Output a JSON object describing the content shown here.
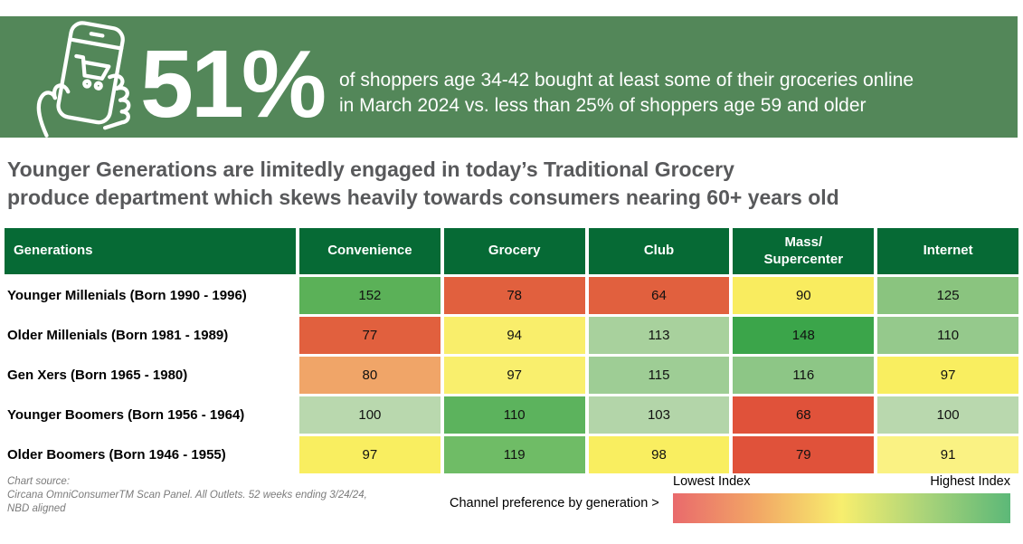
{
  "banner": {
    "bg_color": "#538759",
    "stat": "51%",
    "description_line1": "of shoppers age 34-42 bought at least some of their groceries online",
    "description_line2": "in March 2024 vs. less than 25% of shoppers age 59 and older",
    "icon": "hand-holding-phone-shopping-cart-icon"
  },
  "headline": {
    "line1": "Younger Generations are limitedly engaged in today’s Traditional Grocery",
    "line2": "produce department which skews heavily towards consumers nearing 60+ years old"
  },
  "chart_data": {
    "type": "heatmap",
    "title": "Channel preference by generation",
    "corner_header": "Generations",
    "header_bg": "#066a35",
    "columns": [
      "Convenience",
      "Grocery",
      "Club",
      "Mass/\nSupercenter",
      "Internet"
    ],
    "rows": [
      {
        "label": "Younger Millenials (Born 1990 - 1996)",
        "values": [
          152,
          78,
          64,
          90,
          125
        ],
        "colors": [
          "#5bb158",
          "#e1603e",
          "#e1603e",
          "#f9ec5f",
          "#8ac47f"
        ]
      },
      {
        "label": "Older Millenials (Born 1981 - 1989)",
        "values": [
          77,
          94,
          113,
          148,
          110
        ],
        "colors": [
          "#e1603e",
          "#f9ee6b",
          "#a8d19d",
          "#3ba54a",
          "#95c98c"
        ]
      },
      {
        "label": "Gen Xers (Born 1965 - 1980)",
        "values": [
          80,
          97,
          115,
          116,
          97
        ],
        "colors": [
          "#f0a568",
          "#f9ef6d",
          "#9ecd95",
          "#8dc686",
          "#f9ee60"
        ]
      },
      {
        "label": "Younger Boomers (Born 1956 - 1964)",
        "values": [
          100,
          110,
          103,
          68,
          100
        ],
        "colors": [
          "#b9d8ae",
          "#5cb35d",
          "#b3d5a9",
          "#e0523a",
          "#b9d8ae"
        ]
      },
      {
        "label": "Older Boomers (Born 1946 - 1955)",
        "values": [
          97,
          119,
          98,
          79,
          91
        ],
        "colors": [
          "#f9ee60",
          "#6fbc66",
          "#f9ee60",
          "#e0523a",
          "#faf283"
        ]
      }
    ],
    "legend": {
      "low_label": "Lowest Index",
      "high_label": "Highest Index",
      "gradient": [
        "#e96a6c",
        "#f2a765",
        "#f7ee6e",
        "#a9d379",
        "#5cb878"
      ]
    }
  },
  "footer": {
    "source_line1": "Chart source:",
    "source_line2": "Circana OmniConsumerTM Scan Panel. All Outlets. 52 weeks ending 3/24/24,",
    "source_line3": "NBD aligned",
    "legend_caption": "Channel preference by generation >"
  }
}
